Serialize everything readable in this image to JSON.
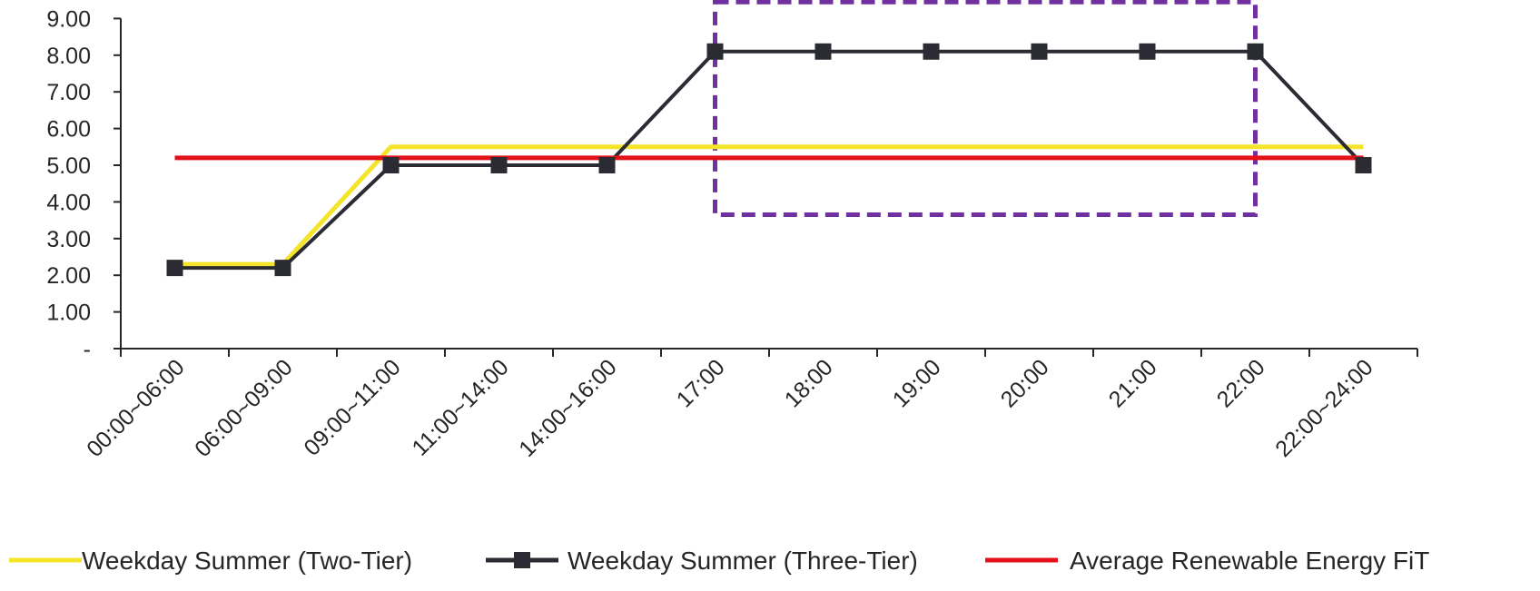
{
  "chart_data": {
    "type": "line",
    "categories": [
      "00:00~06:00",
      "06:00~09:00",
      "09:00~11:00",
      "11:00~14:00",
      "14:00~16:00",
      "17:00",
      "18:00",
      "19:00",
      "20:00",
      "21:00",
      "22:00",
      "22:00~24:00"
    ],
    "y_tick_labels": [
      "-",
      "1.00",
      "2.00",
      "3.00",
      "4.00",
      "5.00",
      "6.00",
      "7.00",
      "8.00",
      "9.00"
    ],
    "ylim": [
      0,
      9
    ],
    "grid": false,
    "legend_position": "bottom",
    "series": [
      {
        "name": "Weekday Summer (Two-Tier)",
        "color": "#f5e52a",
        "marker": "none",
        "values": [
          2.3,
          2.3,
          5.5,
          5.5,
          5.5,
          5.5,
          5.5,
          5.5,
          5.5,
          5.5,
          5.5,
          5.5
        ]
      },
      {
        "name": "Weekday Summer (Three-Tier)",
        "color": "#2b2b33",
        "marker": "square",
        "values": [
          2.2,
          2.2,
          5.0,
          5.0,
          5.0,
          8.1,
          8.1,
          8.1,
          8.1,
          8.1,
          8.1,
          5.0
        ]
      },
      {
        "name": "Average Renewable Energy FiT",
        "color": "#e3101a",
        "marker": "none",
        "values": [
          5.2,
          5.2,
          5.2,
          5.2,
          5.2,
          5.2,
          5.2,
          5.2,
          5.2,
          5.2,
          5.2,
          5.2
        ]
      }
    ],
    "annotations": [
      {
        "type": "dashed-box",
        "color": "#7030a0",
        "x_start": "17:00",
        "x_end": "22:00",
        "y_range": [
          3.65,
          9.45
        ]
      }
    ]
  }
}
